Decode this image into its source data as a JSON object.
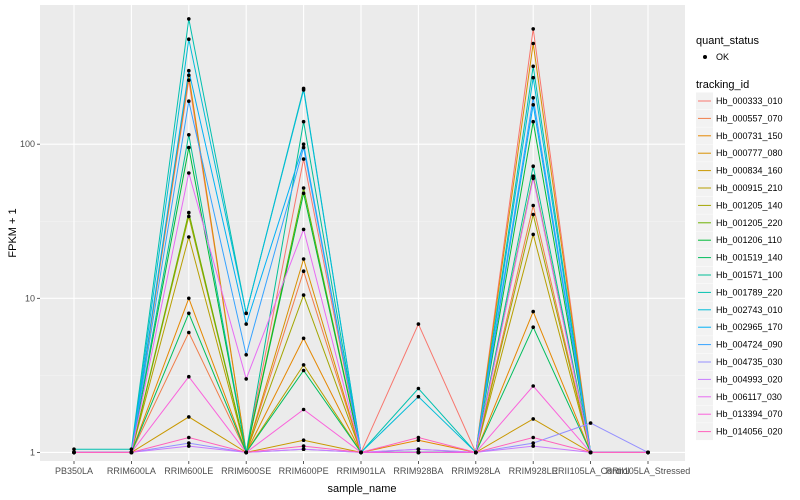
{
  "chart_data": {
    "type": "line",
    "xlabel": "sample_name",
    "ylabel": "FPKM + 1",
    "y_scale": "log10",
    "ylim": [
      0.88,
      800
    ],
    "y_ticks": [
      1,
      10,
      100
    ],
    "y_tick_labels": [
      "1",
      "10",
      "100"
    ],
    "categories": [
      "PB350LA",
      "RRIM600LA",
      "RRIM600LE",
      "RRIM600SE",
      "RRIM600PE",
      "RRIM901LA",
      "RRIM928BA",
      "RRIM928LA",
      "RRIM928LE",
      "RRII105LA_Control",
      "RRII105LA_Stressed"
    ],
    "grid": true,
    "background": "#ebebeb",
    "legend_position": "right",
    "point_legend": {
      "title": "quant_status",
      "label": "OK"
    },
    "legend_title": "tracking_id",
    "series": [
      {
        "name": "Hb_000333_010",
        "color": "#F8766D",
        "values": [
          1.0,
          1.0,
          260,
          1.0,
          80,
          1.0,
          6.8,
          1.0,
          560,
          1.0,
          1.0
        ]
      },
      {
        "name": "Hb_000557_070",
        "color": "#F07E4A",
        "values": [
          1.0,
          1.0,
          6.0,
          1.0,
          15,
          1.0,
          1.0,
          1.0,
          40,
          1.0,
          1.0
        ]
      },
      {
        "name": "Hb_000731_150",
        "color": "#E58700",
        "values": [
          1.0,
          1.0,
          10.0,
          1.0,
          5.5,
          1.0,
          1.2,
          1.0,
          8.2,
          1.0,
          1.0
        ]
      },
      {
        "name": "Hb_000777_080",
        "color": "#D89000",
        "values": [
          1.0,
          1.0,
          280,
          1.0,
          18,
          1.0,
          1.0,
          1.0,
          450,
          1.0,
          1.0
        ]
      },
      {
        "name": "Hb_000834_160",
        "color": "#C99800",
        "values": [
          1.0,
          1.0,
          1.7,
          1.0,
          1.2,
          1.0,
          1.0,
          1.0,
          1.65,
          1.0,
          1.0
        ]
      },
      {
        "name": "Hb_000915_210",
        "color": "#B79F00",
        "values": [
          1.0,
          1.0,
          25,
          1.0,
          3.7,
          1.0,
          1.0,
          1.0,
          26,
          1.0,
          1.0
        ]
      },
      {
        "name": "Hb_001205_140",
        "color": "#A3A500",
        "values": [
          1.0,
          1.0,
          34,
          1.0,
          10.5,
          1.0,
          1.0,
          1.0,
          35,
          1.0,
          1.0
        ]
      },
      {
        "name": "Hb_001205_220",
        "color": "#6BB100",
        "values": [
          1.0,
          1.0,
          36,
          1.0,
          52,
          1.0,
          1.0,
          1.0,
          62,
          1.0,
          1.0
        ]
      },
      {
        "name": "Hb_001206_110",
        "color": "#00BA38",
        "values": [
          1.0,
          1.0,
          95,
          1.0,
          48,
          1.0,
          1.0,
          1.0,
          140,
          1.0,
          1.0
        ]
      },
      {
        "name": "Hb_001519_140",
        "color": "#00BD5C",
        "values": [
          1.0,
          1.0,
          8.0,
          1.0,
          3.4,
          1.0,
          1.0,
          1.0,
          6.5,
          1.0,
          1.0
        ]
      },
      {
        "name": "Hb_001571_100",
        "color": "#00BF96",
        "values": [
          1.0,
          1.0,
          115,
          1.0,
          140,
          1.0,
          1.0,
          1.0,
          72,
          1.0,
          1.0
        ]
      },
      {
        "name": "Hb_001789_220",
        "color": "#00C0AF",
        "values": [
          1.05,
          1.05,
          650,
          8.0,
          230,
          1.0,
          2.6,
          1.0,
          320,
          1.0,
          1.0
        ]
      },
      {
        "name": "Hb_002743_010",
        "color": "#00BCD8",
        "values": [
          1.0,
          1.0,
          480,
          8.0,
          225,
          1.0,
          2.3,
          1.0,
          270,
          1.0,
          1.0
        ]
      },
      {
        "name": "Hb_002965_170",
        "color": "#00B0F6",
        "values": [
          1.0,
          1.0,
          300,
          6.8,
          100,
          1.0,
          1.0,
          1.0,
          180,
          1.0,
          1.0
        ]
      },
      {
        "name": "Hb_004724_090",
        "color": "#35A2FF",
        "values": [
          1.0,
          1.0,
          190,
          4.3,
          95,
          1.0,
          1.0,
          1.0,
          200,
          1.0,
          1.0
        ]
      },
      {
        "name": "Hb_004735_030",
        "color": "#9590FF",
        "values": [
          1.0,
          1.0,
          1.15,
          1.0,
          1.05,
          1.0,
          1.05,
          1.0,
          1.15,
          1.55,
          1.0
        ]
      },
      {
        "name": "Hb_004993_020",
        "color": "#C77CFF",
        "values": [
          1.0,
          1.0,
          1.1,
          1.0,
          1.05,
          1.0,
          1.05,
          1.0,
          1.1,
          1.0,
          1.0
        ]
      },
      {
        "name": "Hb_006117_030",
        "color": "#E76BF3",
        "values": [
          1.0,
          1.0,
          65,
          3.0,
          28,
          1.0,
          1.0,
          1.0,
          60,
          1.0,
          1.0
        ]
      },
      {
        "name": "Hb_013394_070",
        "color": "#FA62DB",
        "values": [
          1.0,
          1.0,
          3.1,
          1.0,
          1.9,
          1.0,
          1.0,
          1.0,
          2.7,
          1.0,
          1.0
        ]
      },
      {
        "name": "Hb_014056_020",
        "color": "#FF62BC",
        "values": [
          1.0,
          1.0,
          1.25,
          1.0,
          1.1,
          1.0,
          1.25,
          1.0,
          1.25,
          1.0,
          1.0
        ]
      }
    ]
  }
}
